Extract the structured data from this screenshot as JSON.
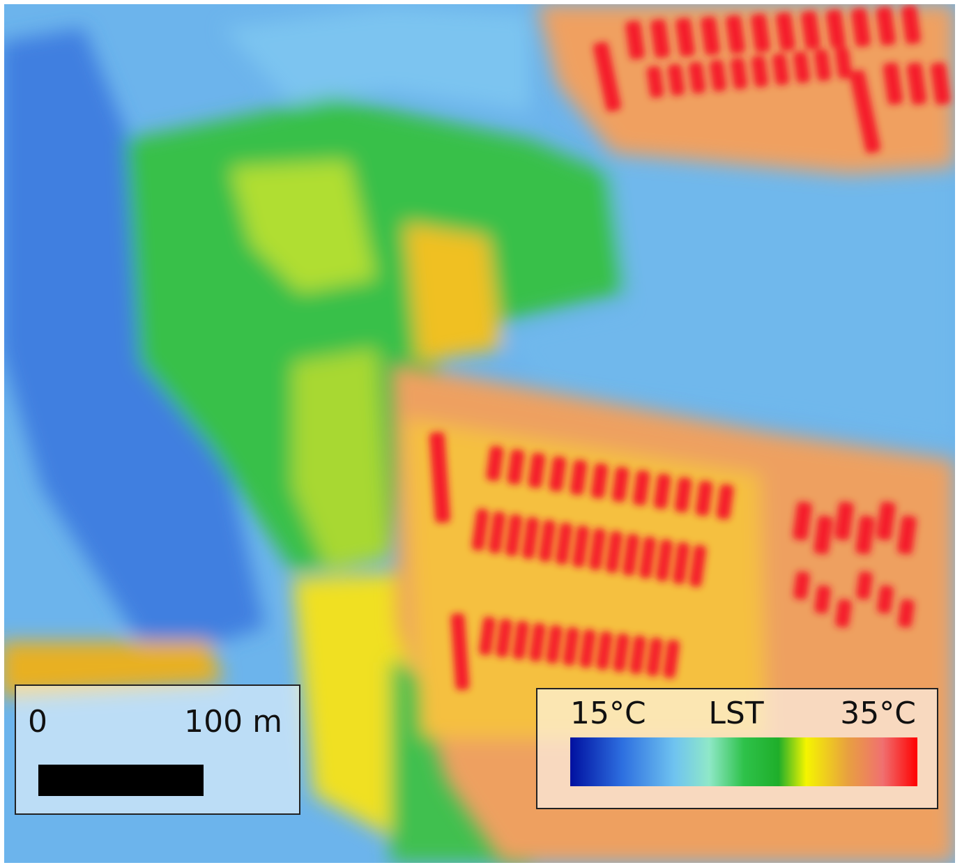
{
  "scale_bar": {
    "start_label": "0",
    "end_label": "100 m"
  },
  "legend": {
    "min_label": "15°C",
    "title": "LST",
    "max_label": "35°C"
  }
}
